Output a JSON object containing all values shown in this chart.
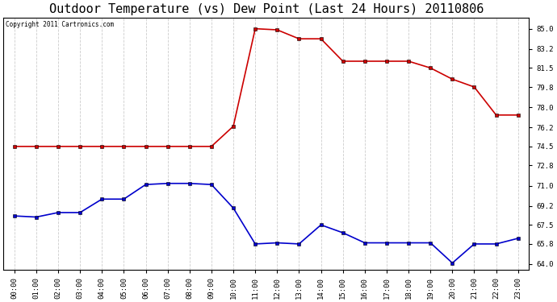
{
  "title": "Outdoor Temperature (vs) Dew Point (Last 24 Hours) 20110806",
  "copyright_text": "Copyright 2011 Cartronics.com",
  "x_labels": [
    "00:00",
    "01:00",
    "02:00",
    "03:00",
    "04:00",
    "05:00",
    "06:00",
    "07:00",
    "08:00",
    "09:00",
    "10:00",
    "11:00",
    "12:00",
    "13:00",
    "14:00",
    "15:00",
    "16:00",
    "17:00",
    "18:00",
    "19:00",
    "20:00",
    "21:00",
    "22:00",
    "23:00"
  ],
  "temp_data": [
    74.5,
    74.5,
    74.5,
    74.5,
    74.5,
    74.5,
    74.5,
    74.5,
    74.5,
    74.5,
    76.3,
    85.0,
    84.9,
    84.1,
    84.1,
    82.1,
    82.1,
    82.1,
    82.1,
    81.5,
    80.5,
    79.8,
    77.3,
    77.3
  ],
  "dew_data": [
    68.3,
    68.2,
    68.6,
    68.6,
    69.8,
    69.8,
    71.1,
    71.2,
    71.2,
    71.1,
    69.0,
    65.8,
    65.9,
    65.8,
    67.5,
    66.8,
    65.9,
    65.9,
    65.9,
    65.9,
    64.1,
    65.8,
    65.8,
    66.3
  ],
  "temp_color": "#cc0000",
  "dew_color": "#0000cc",
  "ylim": [
    63.5,
    86.0
  ],
  "yticks_right": [
    64.0,
    65.8,
    67.5,
    69.2,
    71.0,
    72.8,
    74.5,
    76.2,
    78.0,
    79.8,
    81.5,
    83.2,
    85.0
  ],
  "background_color": "#ffffff",
  "grid_color": "#cccccc",
  "title_fontsize": 11,
  "marker": "s",
  "markersize": 2.5,
  "linewidth": 1.2
}
